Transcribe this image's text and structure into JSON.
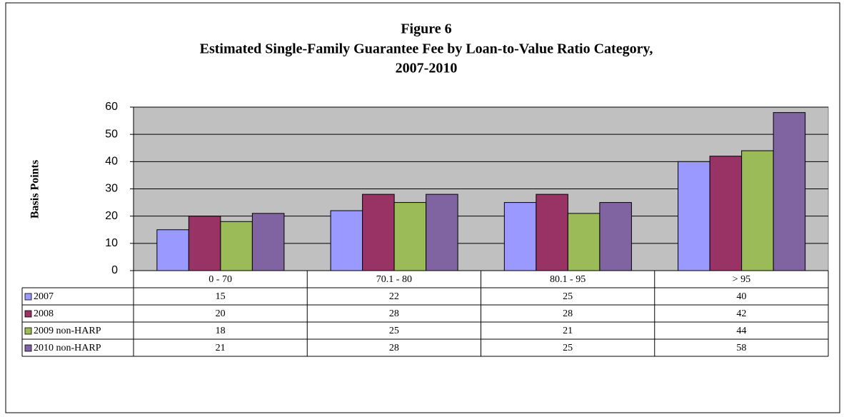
{
  "chart_data": {
    "type": "bar",
    "title": "Figure 6",
    "subtitle": [
      "Estimated Single-Family Guarantee Fee by Loan-to-Value Ratio Category,",
      "2007-2010"
    ],
    "y_label": "Basis Points",
    "categories": [
      "0 - 70",
      "70.1 - 80",
      "80.1 - 95",
      "> 95"
    ],
    "series": [
      {
        "name": "2007",
        "color": "#9999ff",
        "values": [
          15,
          22,
          25,
          40
        ]
      },
      {
        "name": "2008",
        "color": "#993366",
        "values": [
          20,
          28,
          28,
          42
        ]
      },
      {
        "name": "2009 non-HARP",
        "color": "#9bbb59",
        "values": [
          18,
          25,
          21,
          44
        ]
      },
      {
        "name": "2010 non-HARP",
        "color": "#8064a2",
        "values": [
          21,
          28,
          25,
          58
        ]
      }
    ],
    "ylim": [
      0,
      60
    ],
    "yticks": [
      0,
      10,
      20,
      30,
      40,
      50,
      60
    ],
    "grid": true,
    "plot_background": "#c0c0c0"
  }
}
